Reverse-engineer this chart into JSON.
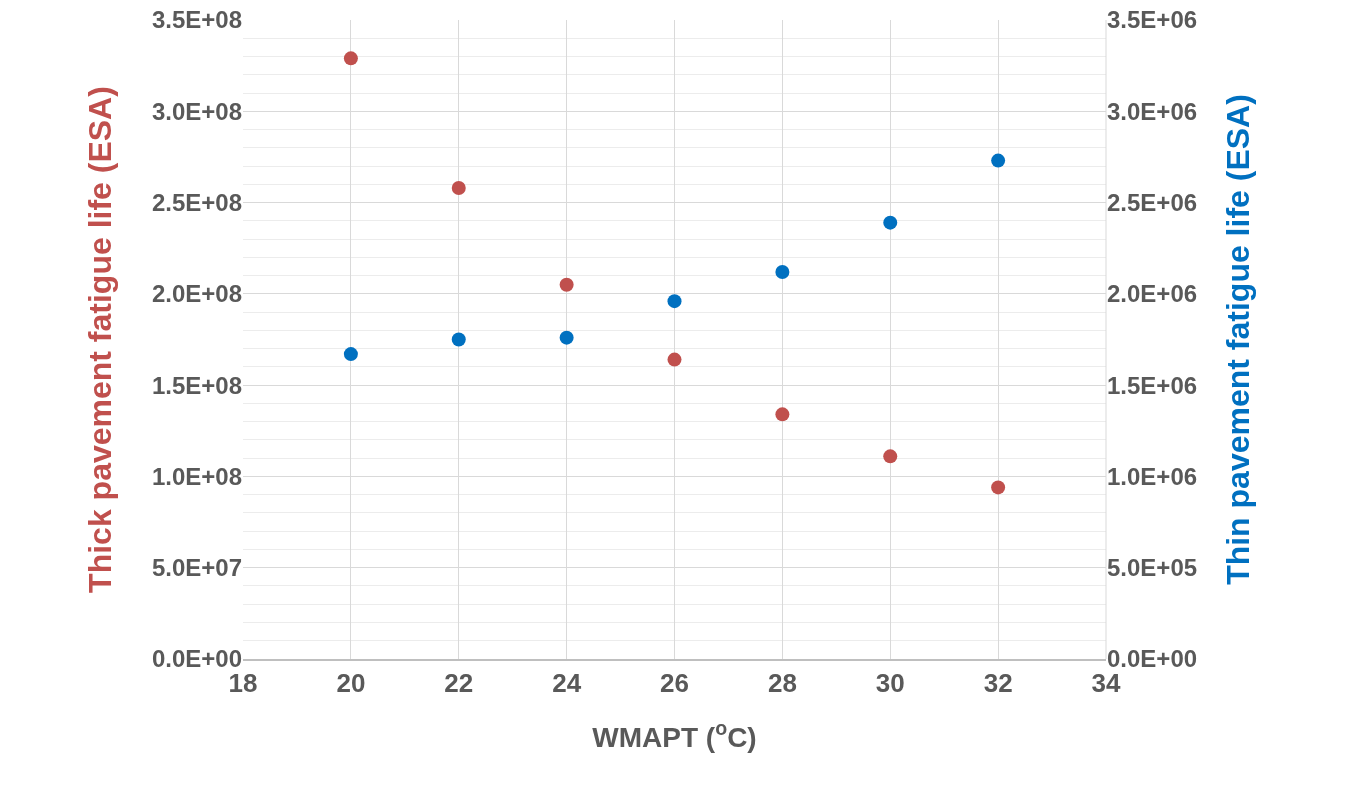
{
  "chart_data": {
    "type": "scatter",
    "xlabel": "WMAPT ($^{o}$C)",
    "ylabel": "Thick pavement fatigue life (ESA)",
    "y2label": "Thin pavement fatigue life (ESA)",
    "x": [
      20,
      22,
      24,
      26,
      28,
      30,
      32
    ],
    "series": [
      {
        "color": "#c0504d",
        "values": [
          329000000,
          258000000,
          205000000,
          164000000,
          134000000,
          111000000,
          94000000
        ]
      },
      {
        "color": "#0070c0",
        "axis": "y2",
        "values": [
          1670000,
          1750000,
          1760000,
          1960000,
          2120000,
          2390000,
          2730000
        ]
      }
    ],
    "xlim": [
      18,
      34
    ],
    "xticks": [
      18,
      20,
      22,
      24,
      26,
      28,
      30,
      32,
      34
    ],
    "ylim": [
      0,
      350000000
    ],
    "yticks": [
      {
        "value": 0,
        "label": "0.0E+00"
      },
      {
        "value": 50000000,
        "label": "5.0E+07"
      },
      {
        "value": 100000000,
        "label": "1.0E+08"
      },
      {
        "value": 150000000,
        "label": "1.5E+08"
      },
      {
        "value": 200000000,
        "label": "2.0E+08"
      },
      {
        "value": 250000000,
        "label": "2.5E+08"
      },
      {
        "value": 300000000,
        "label": "3.0E+08"
      },
      {
        "value": 350000000,
        "label": "3.5E+08"
      }
    ],
    "y2lim": [
      0,
      3500000
    ],
    "y2ticks": [
      {
        "value": 0,
        "label": "0.0E+00"
      },
      {
        "value": 500000,
        "label": "5.0E+05"
      },
      {
        "value": 1000000,
        "label": "1.0E+06"
      },
      {
        "value": 1500000,
        "label": "1.5E+06"
      },
      {
        "value": 2000000,
        "label": "2.0E+06"
      },
      {
        "value": 2500000,
        "label": "2.5E+06"
      },
      {
        "value": 3000000,
        "label": "3.0E+06"
      },
      {
        "value": 3500000,
        "label": "3.5E+06"
      }
    ],
    "grid": true,
    "marker": "circle"
  }
}
